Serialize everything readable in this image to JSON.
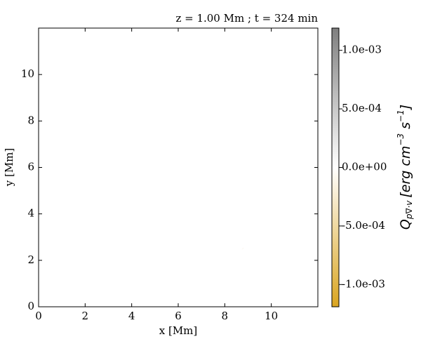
{
  "chart_data": {
    "type": "heatmap",
    "title": "z = 1.00 Mm ; t = 324 min",
    "x_label": "x [Mm]",
    "y_label": "y [Mm]",
    "xlim": [
      0,
      12
    ],
    "ylim": [
      0,
      12
    ],
    "xticks": [
      0,
      2,
      4,
      6,
      8,
      10
    ],
    "yticks": [
      0,
      2,
      4,
      6,
      8,
      10
    ],
    "colorbar": {
      "clim": [
        -0.00119,
        0.00119
      ],
      "colormap": [
        "#daa520",
        "#ffffff",
        "#7f7f7f"
      ],
      "ticks": [
        {
          "value": -0.001,
          "label": "-1.0e-03"
        },
        {
          "value": -0.0005,
          "label": "-5.0e-04"
        },
        {
          "value": 0,
          "label": "0.0e+00"
        },
        {
          "value": 0.0005,
          "label": "5.0e-04"
        },
        {
          "value": 0.001,
          "label": "1.0e-03"
        }
      ],
      "label": {
        "symbol": "Q",
        "sub": "p∇·v",
        "unit_parts": [
          "[erg cm",
          "−3",
          " s",
          "−1",
          "]"
        ]
      }
    }
  }
}
